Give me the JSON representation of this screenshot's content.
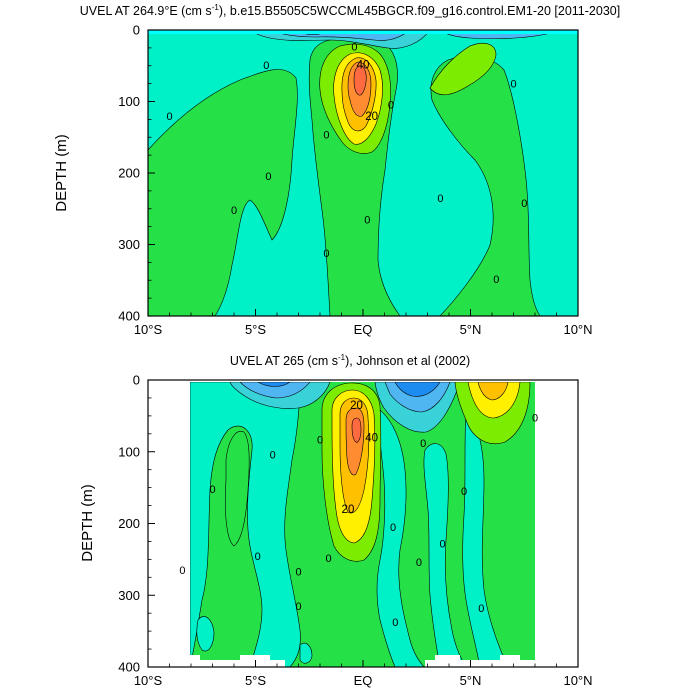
{
  "chart_data": [
    {
      "type": "contour",
      "title": "UVEL AT 264.9°E (cm s⁻¹), b.e15.B5505C5WCCML45BGCR.f09_g16.control.EM1-20 [2011-2030]",
      "title_prefix": "UVEL AT 264.9°E (cm s",
      "title_sup": "-1",
      "title_suffix": "), b.e15.B5505C5WCCML45BGCR.f09_g16.control.EM1-20 [2011-2030]",
      "ylabel": "DEPTH (m)",
      "xlabel": "",
      "xlim": [
        -10,
        10
      ],
      "ylim": [
        400,
        0
      ],
      "x_tick_labels": [
        "10°S",
        "5°S",
        "EQ",
        "5°N",
        "10°N"
      ],
      "x_tick_values": [
        -10,
        -5,
        0,
        5,
        10
      ],
      "y_tick_labels": [
        "0",
        "100",
        "200",
        "300",
        "400"
      ],
      "y_tick_values": [
        0,
        100,
        200,
        300,
        400
      ],
      "contour_labels": [
        {
          "text": "40",
          "x": 0.0,
          "y": 48
        },
        {
          "text": "20",
          "x": 0.4,
          "y": 120
        },
        {
          "text": "0",
          "x": -4.5,
          "y": 49
        },
        {
          "text": "0",
          "x": -0.4,
          "y": 23
        },
        {
          "text": "0",
          "x": 1.3,
          "y": 104
        },
        {
          "text": "0",
          "x": 7.0,
          "y": 75
        },
        {
          "text": "0",
          "x": -9.0,
          "y": 120
        },
        {
          "text": "0",
          "x": -1.7,
          "y": 146
        },
        {
          "text": "0",
          "x": -4.4,
          "y": 204
        },
        {
          "text": "0",
          "x": -6.0,
          "y": 252
        },
        {
          "text": "0",
          "x": 3.6,
          "y": 235
        },
        {
          "text": "0",
          "x": 7.5,
          "y": 242
        },
        {
          "text": "0",
          "x": 0.2,
          "y": 265
        },
        {
          "text": "0",
          "x": -1.7,
          "y": 312
        },
        {
          "text": "0",
          "x": 6.2,
          "y": 348
        }
      ]
    },
    {
      "type": "contour",
      "title": "UVEL AT 265 (cm s⁻¹), Johnson et al (2002)",
      "title_prefix": "UVEL AT 265 (cm s",
      "title_sup": "-1",
      "title_suffix": "), Johnson et al (2002)",
      "ylabel": "DEPTH (m)",
      "xlabel": "",
      "xlim": [
        -10,
        10
      ],
      "ylim": [
        400,
        0
      ],
      "x_tick_labels": [
        "10°S",
        "5°S",
        "EQ",
        "5°N",
        "10°N"
      ],
      "x_tick_values": [
        -10,
        -5,
        0,
        5,
        10
      ],
      "y_tick_labels": [
        "0",
        "100",
        "200",
        "300",
        "400"
      ],
      "y_tick_values": [
        0,
        100,
        200,
        300,
        400
      ],
      "contour_labels": [
        {
          "text": "20",
          "x": -0.3,
          "y": 35
        },
        {
          "text": "40",
          "x": 0.4,
          "y": 80
        },
        {
          "text": "20",
          "x": -0.7,
          "y": 180
        },
        {
          "text": "0",
          "x": 2.8,
          "y": 88
        },
        {
          "text": "0",
          "x": 8.0,
          "y": 52
        },
        {
          "text": "0",
          "x": -4.2,
          "y": 104
        },
        {
          "text": "0",
          "x": -2.0,
          "y": 83
        },
        {
          "text": "0",
          "x": -7.0,
          "y": 152
        },
        {
          "text": "0",
          "x": 4.7,
          "y": 155
        },
        {
          "text": "0",
          "x": 1.4,
          "y": 205
        },
        {
          "text": "0",
          "x": -8.4,
          "y": 265
        },
        {
          "text": "0",
          "x": -4.9,
          "y": 245
        },
        {
          "text": "0",
          "x": -3.0,
          "y": 267
        },
        {
          "text": "0",
          "x": -1.6,
          "y": 248
        },
        {
          "text": "0",
          "x": 3.7,
          "y": 228
        },
        {
          "text": "0",
          "x": 2.6,
          "y": 254
        },
        {
          "text": "0",
          "x": -3.0,
          "y": 315
        },
        {
          "text": "0",
          "x": 1.5,
          "y": 337
        },
        {
          "text": "0",
          "x": 5.5,
          "y": 318
        }
      ]
    }
  ],
  "colors": {
    "easterly_deep": "#1c8cf0",
    "easterly_mid": "#4fb6f2",
    "easterly_light": "#39d2d8",
    "near_zero_neg": "#00f0c8",
    "near_zero_pos": "#26e048",
    "weak_pos": "#7cec00",
    "mid_pos": "#fff000",
    "strong_pos": "#ffc000",
    "core_pos": "#ff8c30",
    "max_pos": "#ff6a40"
  }
}
